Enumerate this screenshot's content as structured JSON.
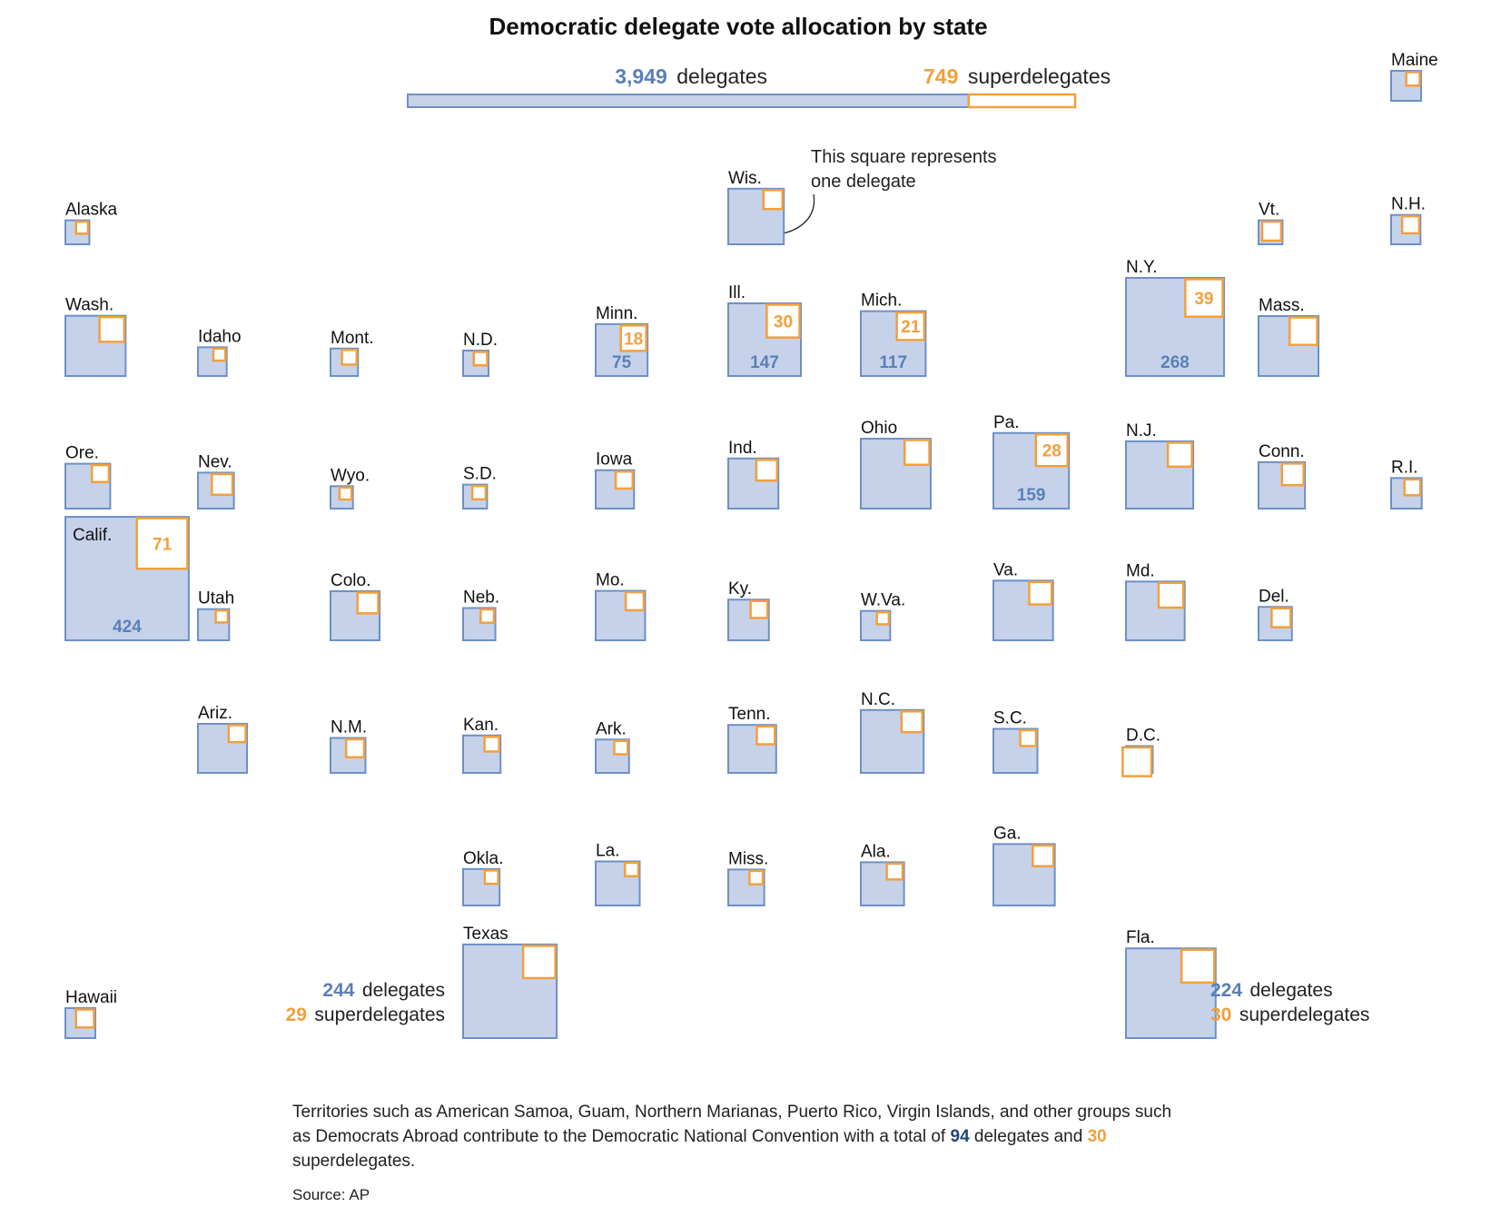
{
  "colors": {
    "delegate_fill": "#c6d2ea",
    "delegate_stroke": "#6d90c6",
    "super_stroke": "#f2a03d",
    "blue_text": "#5b7fb8",
    "orange_text": "#f2a03d",
    "footnote_blue": "#23457a"
  },
  "chart_data": {
    "type": "square-cartogram",
    "title": "Democratic delegate vote allocation by state",
    "totals": {
      "delegates": 3949,
      "delegates_text": "3,949",
      "delegates_label": "delegates",
      "superdelegates": 749,
      "superdelegates_text": "749",
      "superdelegates_label": "superdelegates"
    },
    "annotation": [
      "This square represents",
      "one delegate"
    ],
    "states": [
      {
        "label": "Maine",
        "delegates": 25,
        "superdelegates": 5
      },
      {
        "label": "Alaska",
        "delegates": 16,
        "superdelegates": 4
      },
      {
        "label": "Wis.",
        "delegates": 86,
        "superdelegates": 10
      },
      {
        "label": "Vt.",
        "delegates": 16,
        "superdelegates": 10
      },
      {
        "label": "N.H.",
        "delegates": 24,
        "superdelegates": 8
      },
      {
        "label": "Wash.",
        "delegates": 101,
        "superdelegates": 17
      },
      {
        "label": "Idaho",
        "delegates": 23,
        "superdelegates": 4
      },
      {
        "label": "Mont.",
        "delegates": 21,
        "superdelegates": 6
      },
      {
        "label": "N.D.",
        "delegates": 18,
        "superdelegates": 5
      },
      {
        "label": "Minn.",
        "delegates": 75,
        "superdelegates": 18,
        "show_values": true
      },
      {
        "label": "Ill.",
        "delegates": 147,
        "superdelegates": 30,
        "show_values": true
      },
      {
        "label": "Mich.",
        "delegates": 117,
        "superdelegates": 21,
        "show_values": true
      },
      {
        "label": "N.Y.",
        "delegates": 268,
        "superdelegates": 39,
        "show_values": true
      },
      {
        "label": "Mass.",
        "delegates": 100,
        "superdelegates": 21
      },
      {
        "label": "Ore.",
        "delegates": 56,
        "superdelegates": 8
      },
      {
        "label": "Nev.",
        "delegates": 36,
        "superdelegates": 12
      },
      {
        "label": "Wyo.",
        "delegates": 14,
        "superdelegates": 4
      },
      {
        "label": "S.D.",
        "delegates": 16,
        "superdelegates": 5
      },
      {
        "label": "Iowa",
        "delegates": 41,
        "superdelegates": 8
      },
      {
        "label": "Ind.",
        "delegates": 70,
        "superdelegates": 12
      },
      {
        "label": "Ohio",
        "delegates": 136,
        "superdelegates": 17
      },
      {
        "label": "Pa.",
        "delegates": 159,
        "superdelegates": 28,
        "show_values": true
      },
      {
        "label": "N.J.",
        "delegates": 126,
        "superdelegates": 16
      },
      {
        "label": "Conn.",
        "delegates": 60,
        "superdelegates": 13
      },
      {
        "label": "R.I.",
        "delegates": 26,
        "superdelegates": 7
      },
      {
        "label": "Calif.",
        "delegates": 424,
        "superdelegates": 71,
        "show_values": true
      },
      {
        "label": "Utah",
        "delegates": 27,
        "superdelegates": 4
      },
      {
        "label": "Colo.",
        "delegates": 67,
        "superdelegates": 12
      },
      {
        "label": "Neb.",
        "delegates": 29,
        "superdelegates": 5
      },
      {
        "label": "Mo.",
        "delegates": 68,
        "superdelegates": 9
      },
      {
        "label": "Ky.",
        "delegates": 46,
        "superdelegates": 8
      },
      {
        "label": "W.Va.",
        "delegates": 24,
        "superdelegates": 4
      },
      {
        "label": "Va.",
        "delegates": 99,
        "superdelegates": 14
      },
      {
        "label": "Md.",
        "delegates": 96,
        "superdelegates": 17
      },
      {
        "label": "Del.",
        "delegates": 31,
        "superdelegates": 10
      },
      {
        "label": "Ariz.",
        "delegates": 67,
        "superdelegates": 8
      },
      {
        "label": "N.M.",
        "delegates": 34,
        "superdelegates": 9
      },
      {
        "label": "Kan.",
        "delegates": 39,
        "superdelegates": 6
      },
      {
        "label": "Ark.",
        "delegates": 31,
        "superdelegates": 5
      },
      {
        "label": "Tenn.",
        "delegates": 64,
        "superdelegates": 9
      },
      {
        "label": "N.C.",
        "delegates": 110,
        "superdelegates": 12
      },
      {
        "label": "S.C.",
        "delegates": 54,
        "superdelegates": 7
      },
      {
        "label": "D.C.",
        "delegates": 20,
        "superdelegates": 23
      },
      {
        "label": "Okla.",
        "delegates": 37,
        "superdelegates": 5
      },
      {
        "label": "La.",
        "delegates": 54,
        "superdelegates": 5
      },
      {
        "label": "Miss.",
        "delegates": 36,
        "superdelegates": 5
      },
      {
        "label": "Ala.",
        "delegates": 52,
        "superdelegates": 7
      },
      {
        "label": "Ga.",
        "delegates": 105,
        "superdelegates": 12
      },
      {
        "label": "Hawaii",
        "delegates": 25,
        "superdelegates": 9
      },
      {
        "label": "Texas",
        "delegates": 244,
        "superdelegates": 29
      },
      {
        "label": "Fla.",
        "delegates": 224,
        "superdelegates": 30
      }
    ],
    "callouts": {
      "texas": {
        "delegates": "244",
        "delegates_label": "delegates",
        "superdelegates": "29",
        "superdelegates_label": "superdelegates"
      },
      "florida": {
        "delegates": "224",
        "delegates_label": "delegates",
        "superdelegates": "30",
        "superdelegates_label": "superdelegates"
      }
    }
  },
  "footnote": {
    "text_1": "Territories such as American Samoa, Guam, Northern Marianas, Puerto Rico, Virgin Islands, and other groups such as Democrats Abroad contribute to the Democratic National Convention with a total of ",
    "delegates": "94",
    "text_2": " delegates and ",
    "superdelegates": "30",
    "text_3": " superdelegates."
  },
  "source": "Source: AP"
}
